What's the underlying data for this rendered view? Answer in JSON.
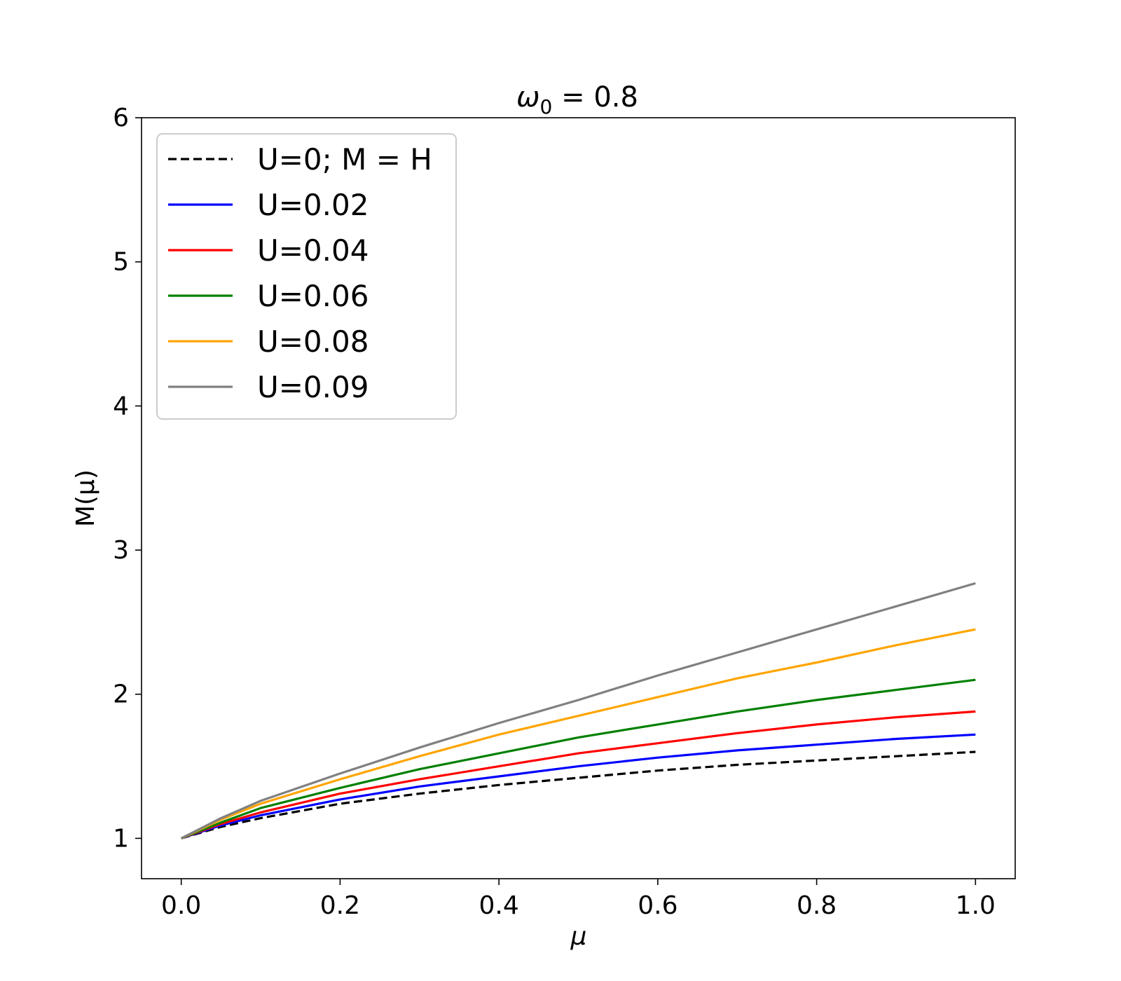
{
  "chart_data": {
    "type": "line",
    "title_symbol": "ω",
    "title_subscript": "0",
    "title_rest": " = 0.8",
    "xlabel": "μ",
    "ylabel": "M(μ)",
    "xlim": [
      -0.05,
      1.05
    ],
    "ylim": [
      0.72,
      6.0
    ],
    "xticks": [
      0.0,
      0.2,
      0.4,
      0.6,
      0.8,
      1.0
    ],
    "xtick_labels": [
      "0.0",
      "0.2",
      "0.4",
      "0.6",
      "0.8",
      "1.0"
    ],
    "yticks": [
      1,
      2,
      3,
      4,
      5,
      6
    ],
    "ytick_labels": [
      "1",
      "2",
      "3",
      "4",
      "5",
      "6"
    ],
    "grid": false,
    "legend_position": "upper-left",
    "x": [
      0.0,
      0.05,
      0.1,
      0.2,
      0.3,
      0.4,
      0.5,
      0.6,
      0.7,
      0.8,
      0.9,
      1.0
    ],
    "series": [
      {
        "name": "U=0; M = H",
        "color": "#000000",
        "dashed": true,
        "values": [
          1.0,
          1.08,
          1.14,
          1.24,
          1.31,
          1.37,
          1.42,
          1.47,
          1.51,
          1.54,
          1.57,
          1.6
        ]
      },
      {
        "name": "U=0.02",
        "color": "#0000ff",
        "dashed": false,
        "values": [
          1.0,
          1.09,
          1.16,
          1.27,
          1.36,
          1.43,
          1.5,
          1.56,
          1.61,
          1.65,
          1.69,
          1.72
        ]
      },
      {
        "name": "U=0.04",
        "color": "#ff0000",
        "dashed": false,
        "values": [
          1.0,
          1.1,
          1.18,
          1.31,
          1.41,
          1.5,
          1.59,
          1.66,
          1.73,
          1.79,
          1.84,
          1.88
        ]
      },
      {
        "name": "U=0.06",
        "color": "#008000",
        "dashed": false,
        "values": [
          1.0,
          1.11,
          1.21,
          1.35,
          1.48,
          1.59,
          1.7,
          1.79,
          1.88,
          1.96,
          2.03,
          2.1
        ]
      },
      {
        "name": "U=0.08",
        "color": "#ffa500",
        "dashed": false,
        "values": [
          1.0,
          1.13,
          1.24,
          1.41,
          1.57,
          1.72,
          1.85,
          1.98,
          2.11,
          2.22,
          2.34,
          2.45
        ]
      },
      {
        "name": "U=0.09",
        "color": "#808080",
        "dashed": false,
        "values": [
          1.0,
          1.14,
          1.26,
          1.45,
          1.63,
          1.8,
          1.96,
          2.13,
          2.29,
          2.45,
          2.61,
          2.77
        ]
      }
    ]
  }
}
